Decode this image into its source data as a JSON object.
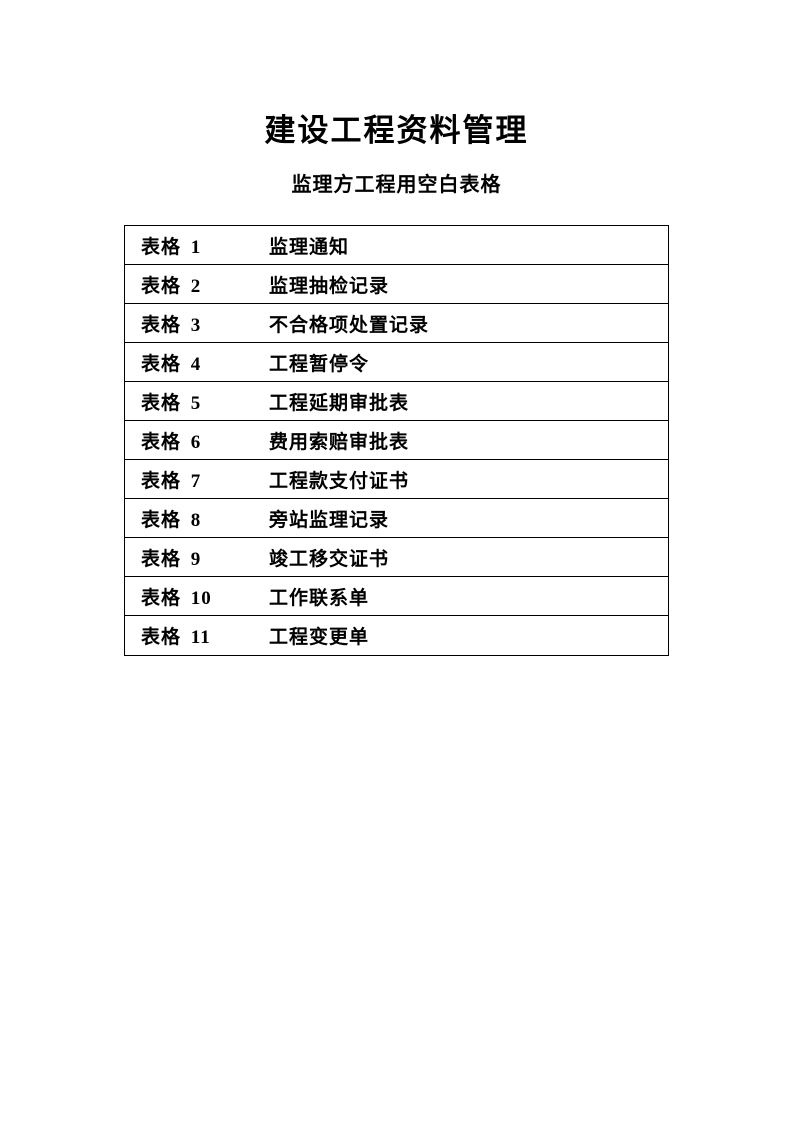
{
  "title": "建设工程资料管理",
  "subtitle": "监理方工程用空白表格",
  "rows": [
    {
      "labelPrefix": "表格",
      "num": "1",
      "desc": "监理通知"
    },
    {
      "labelPrefix": "表格",
      "num": "2",
      "desc": "监理抽检记录"
    },
    {
      "labelPrefix": "表格",
      "num": "3",
      "desc": "不合格项处置记录"
    },
    {
      "labelPrefix": "表格",
      "num": "4",
      "desc": "工程暂停令"
    },
    {
      "labelPrefix": "表格",
      "num": "5",
      "desc": "工程延期审批表"
    },
    {
      "labelPrefix": "表格",
      "num": "6",
      "desc": "费用索赔审批表"
    },
    {
      "labelPrefix": "表格",
      "num": "7",
      "desc": "工程款支付证书"
    },
    {
      "labelPrefix": "表格",
      "num": "8",
      "desc": "旁站监理记录"
    },
    {
      "labelPrefix": "表格",
      "num": "9",
      "desc": "竣工移交证书"
    },
    {
      "labelPrefix": "表格",
      "num": "10",
      "desc": "工作联系单"
    },
    {
      "labelPrefix": "表格",
      "num": "11",
      "desc": "工程变更单"
    }
  ],
  "colors": {
    "background": "#ffffff",
    "text": "#000000",
    "border": "#000000"
  },
  "fonts": {
    "titleSize": 31,
    "subtitleSize": 20,
    "rowSize": 19
  }
}
